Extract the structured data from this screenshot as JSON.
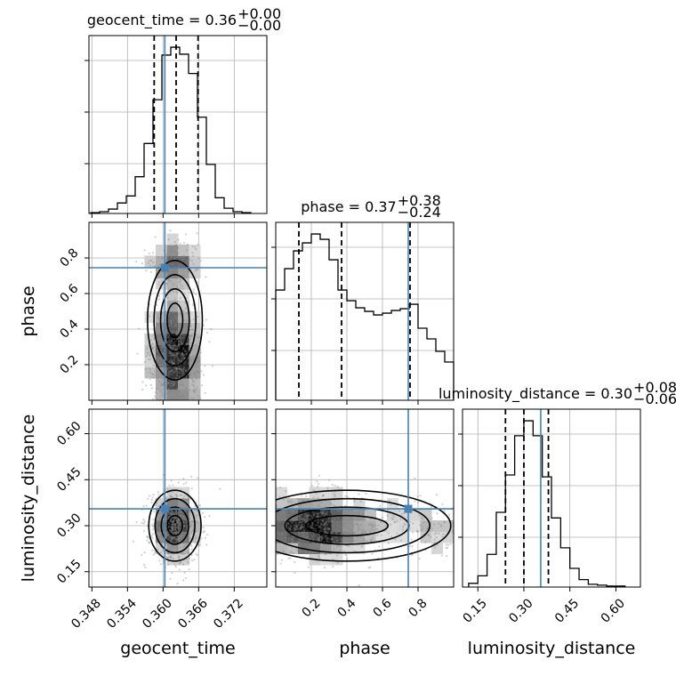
{
  "chart_data": {
    "type": "corner",
    "parameters": [
      "geocent_time",
      "phase",
      "luminosity_distance"
    ],
    "truth_color": "#4682b4",
    "titles": [
      {
        "name": "geocent_time",
        "value": "0.36",
        "plus": "+0.00",
        "minus": "−0.00"
      },
      {
        "name": "phase",
        "value": "0.37",
        "plus": "+0.38",
        "minus": "−0.24"
      },
      {
        "name": "luminosity_distance",
        "value": "0.30",
        "plus": "+0.08",
        "minus": "−0.06"
      }
    ],
    "axis_labels": {
      "x": [
        "geocent_time",
        "phase",
        "luminosity_distance"
      ],
      "y": [
        "phase",
        "luminosity_distance"
      ]
    },
    "ranges": {
      "geocent_time": [
        0.3475,
        0.3775
      ],
      "phase": [
        0.0,
        1.0
      ],
      "luminosity_distance": [
        0.1,
        0.68
      ]
    },
    "ticks": {
      "geocent_time": {
        "values": [
          0.348,
          0.354,
          0.36,
          0.366,
          0.372
        ],
        "labels": [
          "0.348",
          "0.354",
          "0.360",
          "0.366",
          "0.372"
        ]
      },
      "phase": {
        "values": [
          0.2,
          0.4,
          0.6,
          0.8
        ],
        "labels": [
          "0.2",
          "0.4",
          "0.6",
          "0.8"
        ]
      },
      "luminosity_distance": {
        "values": [
          0.15,
          0.3,
          0.45,
          0.6
        ],
        "labels": [
          "0.15",
          "0.30",
          "0.45",
          "0.60"
        ]
      }
    },
    "truths": {
      "geocent_time": 0.3603,
      "phase": 0.745,
      "luminosity_distance": 0.355
    },
    "quantiles": {
      "geocent_time": [
        0.3585,
        0.3622,
        0.3659
      ],
      "phase": [
        0.13,
        0.37,
        0.755
      ],
      "luminosity_distance": [
        0.24,
        0.3,
        0.38
      ]
    },
    "histograms": {
      "geocent_time": {
        "edges": [
          0.3478,
          0.3493,
          0.3508,
          0.3523,
          0.3538,
          0.3553,
          0.3568,
          0.3583,
          0.3598,
          0.3613,
          0.3628,
          0.3643,
          0.3658,
          0.3673,
          0.3688,
          0.3703,
          0.3718,
          0.3733,
          0.3748
        ],
        "counts": [
          1,
          2,
          5,
          12,
          20,
          42,
          80,
          130,
          181,
          190,
          182,
          160,
          110,
          56,
          18,
          6,
          2,
          1
        ]
      },
      "phase": {
        "edges": [
          0.0,
          0.05,
          0.1,
          0.15,
          0.2,
          0.25,
          0.3,
          0.35,
          0.4,
          0.45,
          0.5,
          0.55,
          0.6,
          0.65,
          0.7,
          0.75,
          0.8,
          0.85,
          0.9,
          0.95,
          1.0
        ],
        "counts": [
          124,
          148,
          168,
          177,
          187,
          181,
          158,
          124,
          112,
          104,
          100,
          96,
          98,
          101,
          103,
          108,
          81,
          69,
          55,
          43
        ]
      },
      "luminosity_distance": {
        "edges": [
          0.12,
          0.15,
          0.18,
          0.21,
          0.24,
          0.27,
          0.3,
          0.33,
          0.36,
          0.39,
          0.42,
          0.45,
          0.48,
          0.51,
          0.54,
          0.57,
          0.6,
          0.63
        ],
        "counts": [
          4,
          12,
          35,
          80,
          120,
          162,
          178,
          162,
          118,
          74,
          42,
          20,
          8,
          3,
          2,
          1,
          1
        ]
      }
    },
    "grid": true
  }
}
